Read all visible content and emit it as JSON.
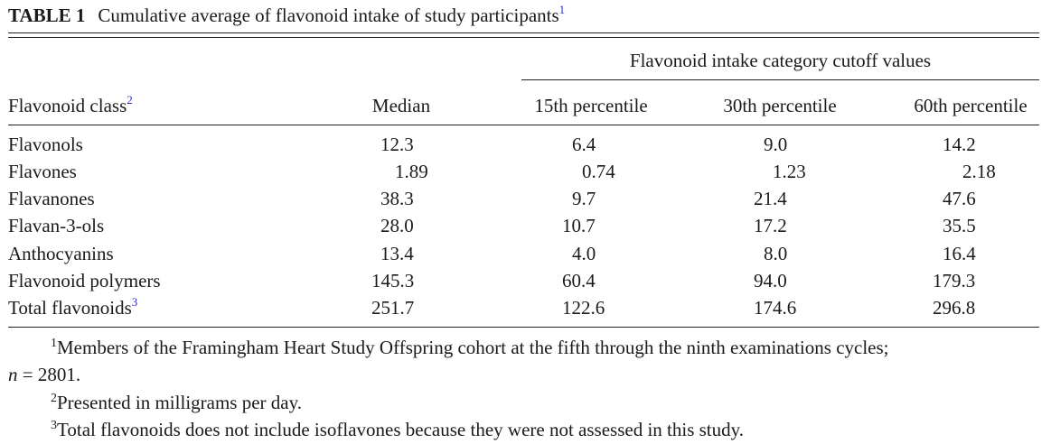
{
  "caption": {
    "label": "TABLE 1",
    "text": "Cumulative average of flavonoid intake of study participants",
    "footnote_mark": "1"
  },
  "header": {
    "spanner": "Flavonoid intake category cutoff values",
    "class_col": "Flavonoid class",
    "class_col_mark": "2",
    "median_col": "Median",
    "p15_col": "15th percentile",
    "p30_col": "30th percentile",
    "p60_col": "60th percentile"
  },
  "rows": [
    {
      "name": "Flavonols",
      "mark": "",
      "median": "12.3",
      "p15": "6.4",
      "p30": "9.0",
      "p60": "14.2"
    },
    {
      "name": "Flavones",
      "mark": "",
      "median": "1.89",
      "p15": "0.74",
      "p30": "1.23",
      "p60": "2.18"
    },
    {
      "name": "Flavanones",
      "mark": "",
      "median": "38.3",
      "p15": "9.7",
      "p30": "21.4",
      "p60": "47.6"
    },
    {
      "name": "Flavan-3-ols",
      "mark": "",
      "median": "28.0",
      "p15": "10.7",
      "p30": "17.2",
      "p60": "35.5"
    },
    {
      "name": "Anthocyanins",
      "mark": "",
      "median": "13.4",
      "p15": "4.0",
      "p30": "8.0",
      "p60": "16.4"
    },
    {
      "name": "Flavonoid polymers",
      "mark": "",
      "median": "145.3",
      "p15": "60.4",
      "p30": "94.0",
      "p60": "179.3"
    },
    {
      "name": "Total flavonoids",
      "mark": "3",
      "median": "251.7",
      "p15": "122.6",
      "p30": "174.6",
      "p60": "296.8"
    }
  ],
  "footnotes": {
    "f1_mark": "1",
    "f1_text": "Members of the Framingham Heart Study Offspring cohort at the fifth through the ninth examinations cycles;",
    "f1_n_var": "n",
    "f1_n_rest": " = 2801.",
    "f2_mark": "2",
    "f2_text": "Presented in milligrams per day.",
    "f3_mark": "3",
    "f3_text": "Total flavonoids does not include isoflavones because they were not assessed in this study."
  }
}
